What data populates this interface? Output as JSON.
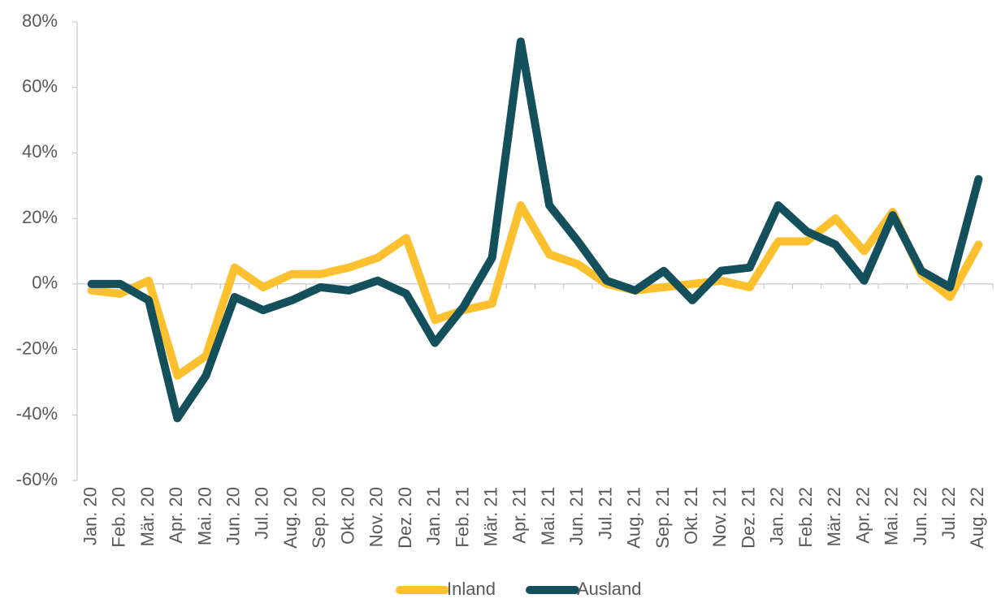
{
  "chart_data": {
    "type": "line",
    "categories": [
      "Jan. 20",
      "Feb. 20",
      "Mär. 20",
      "Apr. 20",
      "Mai. 20",
      "Jun. 20",
      "Jul. 20",
      "Aug. 20",
      "Sep. 20",
      "Okt. 20",
      "Nov. 20",
      "Dez. 20",
      "Jan. 21",
      "Feb. 21",
      "Mär. 21",
      "Apr. 21",
      "Mai. 21",
      "Jun. 21",
      "Jul. 21",
      "Aug. 21",
      "Sep. 21",
      "Okt. 21",
      "Nov. 21",
      "Dez. 21",
      "Jan. 22",
      "Feb. 22",
      "Mär. 22",
      "Apr. 22",
      "Mai. 22",
      "Jun. 22",
      "Jul. 22",
      "Aug. 22"
    ],
    "series": [
      {
        "name": "Inland",
        "color": "#FDC02F",
        "values": [
          -2,
          -3,
          1,
          -28,
          -22,
          5,
          -1,
          3,
          3,
          5,
          8,
          14,
          -11,
          -8,
          -6,
          24,
          9,
          6,
          0,
          -2,
          -1,
          0,
          1,
          -1,
          13,
          13,
          20,
          10,
          22,
          3,
          -4,
          12
        ]
      },
      {
        "name": "Ausland",
        "color": "#144F5C",
        "values": [
          0,
          0,
          -5,
          -41,
          -28,
          -4,
          -8,
          -5,
          -1,
          -2,
          1,
          -3,
          -18,
          -7,
          8,
          74,
          24,
          13,
          1,
          -2,
          4,
          -5,
          4,
          5,
          24,
          16,
          12,
          1,
          21,
          4,
          -1,
          32
        ]
      }
    ],
    "ylim": [
      -60,
      80
    ],
    "yticks": [
      {
        "value": -60,
        "label": "-60%"
      },
      {
        "value": -40,
        "label": "-40%"
      },
      {
        "value": -20,
        "label": "-20%"
      },
      {
        "value": 0,
        "label": "0%"
      },
      {
        "value": 20,
        "label": "20%"
      },
      {
        "value": 40,
        "label": "40%"
      },
      {
        "value": 60,
        "label": "60%"
      },
      {
        "value": 80,
        "label": "80%"
      }
    ],
    "legend": "bottom"
  }
}
